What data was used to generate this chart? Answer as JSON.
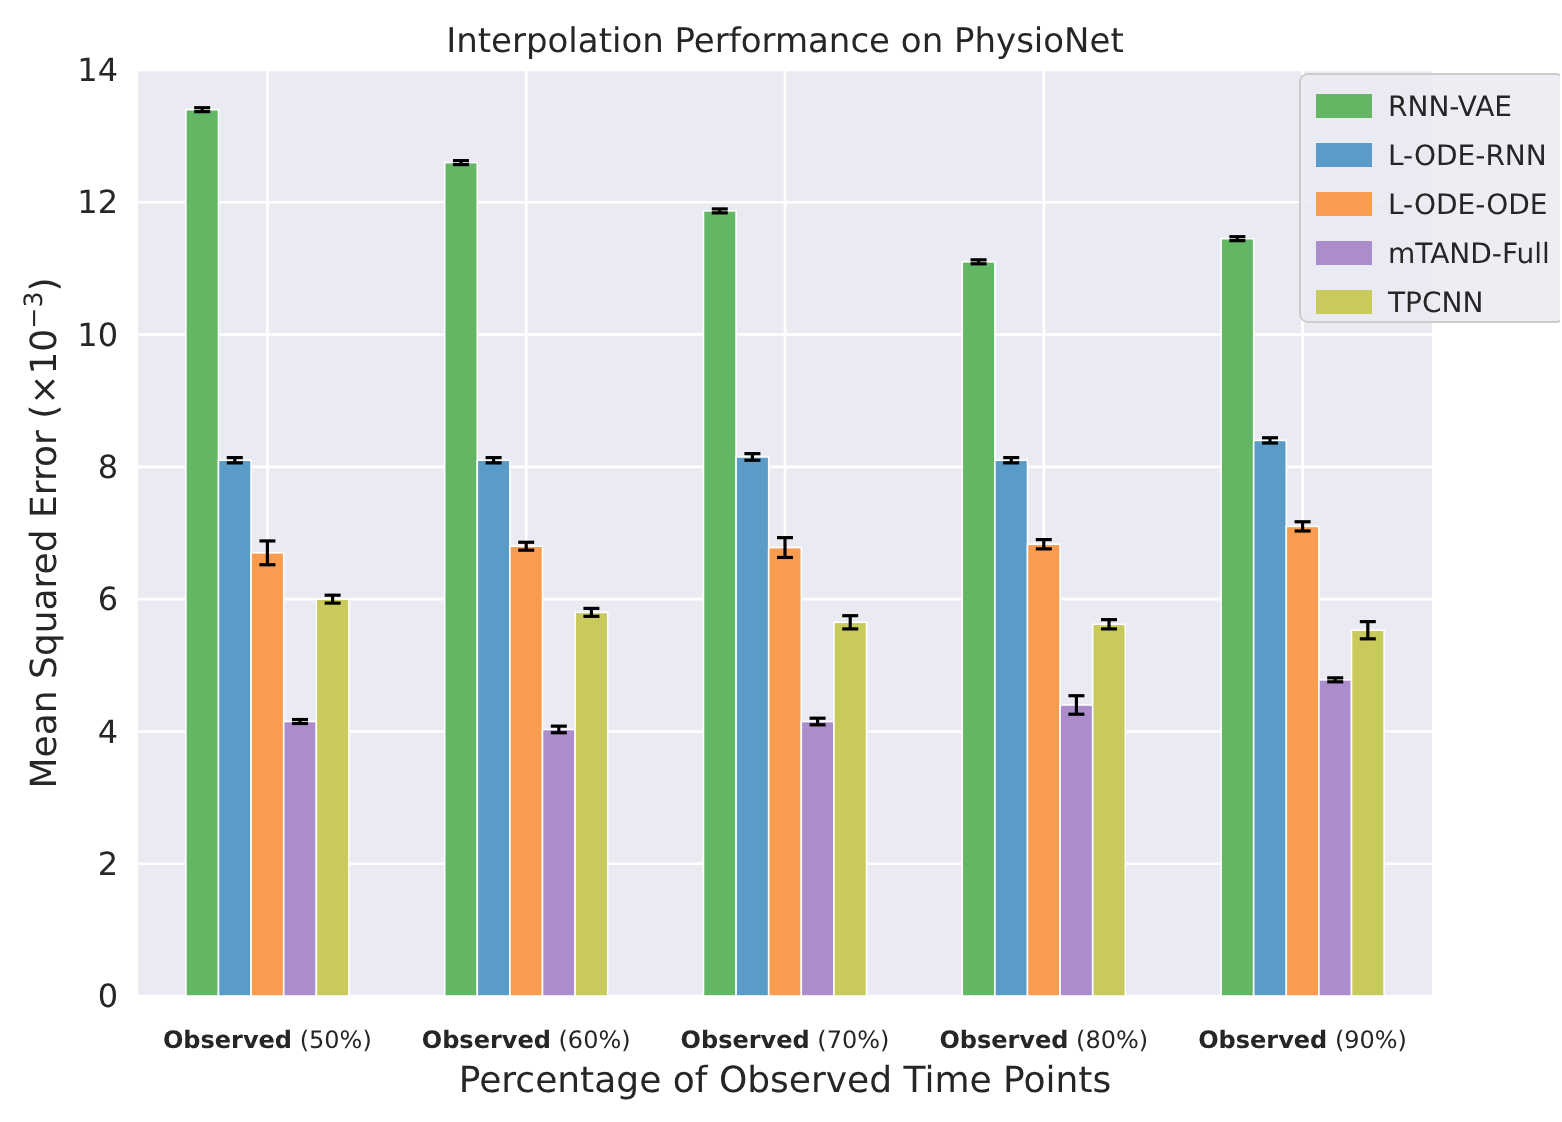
{
  "chart_data": {
    "type": "bar",
    "title": "Interpolation Performance on PhysioNet",
    "xlabel": "Percentage of Observed Time Points",
    "ylabel": "Mean Squared Error (×10$^{−3}$)",
    "categories": [
      "Observed (50%)",
      "Observed (60%)",
      "Observed (70%)",
      "Observed (80%)",
      "Observed (90%)"
    ],
    "series": [
      {
        "name": "RNN-VAE",
        "color": "#63b663",
        "values": [
          13.4,
          12.6,
          11.87,
          11.1,
          11.45
        ],
        "errors": [
          0.03,
          0.03,
          0.03,
          0.03,
          0.03
        ]
      },
      {
        "name": "L-ODE-RNN",
        "color": "#5b9bc8",
        "values": [
          8.1,
          8.1,
          8.15,
          8.1,
          8.4
        ],
        "errors": [
          0.04,
          0.04,
          0.05,
          0.04,
          0.04
        ]
      },
      {
        "name": "L-ODE-ODE",
        "color": "#f99c4f",
        "values": [
          6.7,
          6.8,
          6.78,
          6.83,
          7.1
        ],
        "errors": [
          0.18,
          0.06,
          0.15,
          0.07,
          0.07
        ]
      },
      {
        "name": "mTAND-Full",
        "color": "#ab8dcc",
        "values": [
          4.15,
          4.03,
          4.15,
          4.4,
          4.78
        ],
        "errors": [
          0.03,
          0.05,
          0.05,
          0.14,
          0.03
        ]
      },
      {
        "name": "TPCNN",
        "color": "#c8ca5c",
        "values": [
          6.0,
          5.8,
          5.65,
          5.62,
          5.53
        ],
        "errors": [
          0.06,
          0.06,
          0.1,
          0.07,
          0.13
        ]
      }
    ],
    "ylim": [
      0,
      14
    ],
    "yticks": [
      0,
      2,
      4,
      6,
      8,
      10,
      12,
      14
    ],
    "grid": true,
    "legend": "top right"
  }
}
